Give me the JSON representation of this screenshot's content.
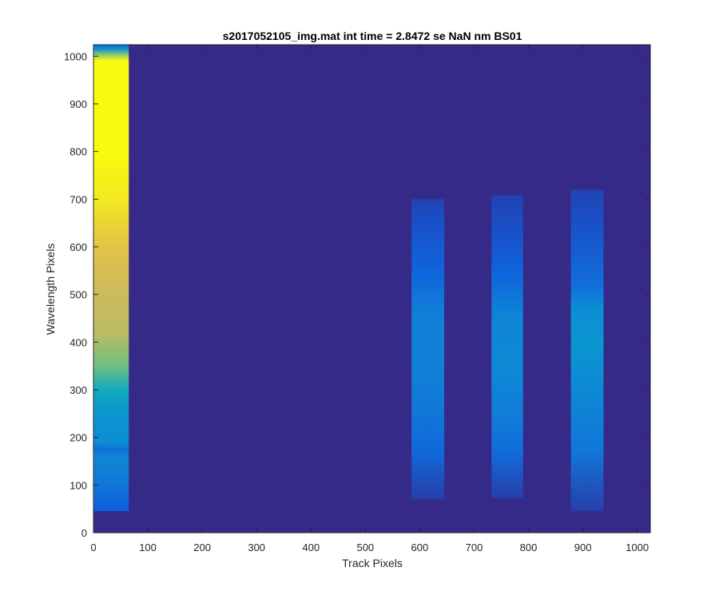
{
  "chart_data": {
    "type": "heatmap",
    "title": "s2017052105_img.mat int time = 2.8472 se  NaN nm BS01",
    "xlabel": "Track Pixels",
    "ylabel": "Wavelength Pixels",
    "xlim": [
      0,
      1024
    ],
    "ylim": [
      0,
      1024
    ],
    "x_ticks": [
      0,
      100,
      200,
      300,
      400,
      500,
      600,
      700,
      800,
      900,
      1000
    ],
    "y_ticks": [
      0,
      100,
      200,
      300,
      400,
      500,
      600,
      700,
      800,
      900,
      1000
    ],
    "colormap": "parula",
    "background_value": 0,
    "legend": "none",
    "grid": false,
    "bands": [
      {
        "name": "band-1",
        "x_range": [
          0,
          65
        ],
        "y_range": [
          45,
          1024
        ],
        "profile": [
          {
            "y": 45,
            "v": 0.2
          },
          {
            "y": 100,
            "v": 0.35
          },
          {
            "y": 160,
            "v": 0.45
          },
          {
            "y": 175,
            "v": 0.3
          },
          {
            "y": 190,
            "v": 0.48
          },
          {
            "y": 250,
            "v": 0.52
          },
          {
            "y": 300,
            "v": 0.62
          },
          {
            "y": 350,
            "v": 0.78
          },
          {
            "y": 420,
            "v": 0.88
          },
          {
            "y": 500,
            "v": 0.9
          },
          {
            "y": 600,
            "v": 0.94
          },
          {
            "y": 700,
            "v": 0.98
          },
          {
            "y": 800,
            "v": 1.0
          },
          {
            "y": 990,
            "v": 1.0
          },
          {
            "y": 1005,
            "v": 0.8
          },
          {
            "y": 1015,
            "v": 0.5
          },
          {
            "y": 1024,
            "v": 0.3
          }
        ]
      },
      {
        "name": "band-2",
        "x_range": [
          585,
          645
        ],
        "y_range": [
          70,
          700
        ],
        "profile": [
          {
            "y": 70,
            "v": 0.08
          },
          {
            "y": 170,
            "v": 0.28
          },
          {
            "y": 250,
            "v": 0.36
          },
          {
            "y": 350,
            "v": 0.42
          },
          {
            "y": 450,
            "v": 0.42
          },
          {
            "y": 550,
            "v": 0.25
          },
          {
            "y": 650,
            "v": 0.15
          },
          {
            "y": 700,
            "v": 0.1
          }
        ]
      },
      {
        "name": "band-3",
        "x_range": [
          732,
          790
        ],
        "y_range": [
          72,
          708
        ],
        "profile": [
          {
            "y": 72,
            "v": 0.08
          },
          {
            "y": 170,
            "v": 0.3
          },
          {
            "y": 250,
            "v": 0.4
          },
          {
            "y": 350,
            "v": 0.46
          },
          {
            "y": 450,
            "v": 0.44
          },
          {
            "y": 550,
            "v": 0.24
          },
          {
            "y": 650,
            "v": 0.14
          },
          {
            "y": 708,
            "v": 0.1
          }
        ]
      },
      {
        "name": "band-4",
        "x_range": [
          878,
          938
        ],
        "y_range": [
          45,
          720
        ],
        "profile": [
          {
            "y": 45,
            "v": 0.08
          },
          {
            "y": 170,
            "v": 0.36
          },
          {
            "y": 300,
            "v": 0.46
          },
          {
            "y": 400,
            "v": 0.52
          },
          {
            "y": 470,
            "v": 0.48
          },
          {
            "y": 520,
            "v": 0.3
          },
          {
            "y": 650,
            "v": 0.15
          },
          {
            "y": 720,
            "v": 0.1
          }
        ]
      }
    ]
  }
}
